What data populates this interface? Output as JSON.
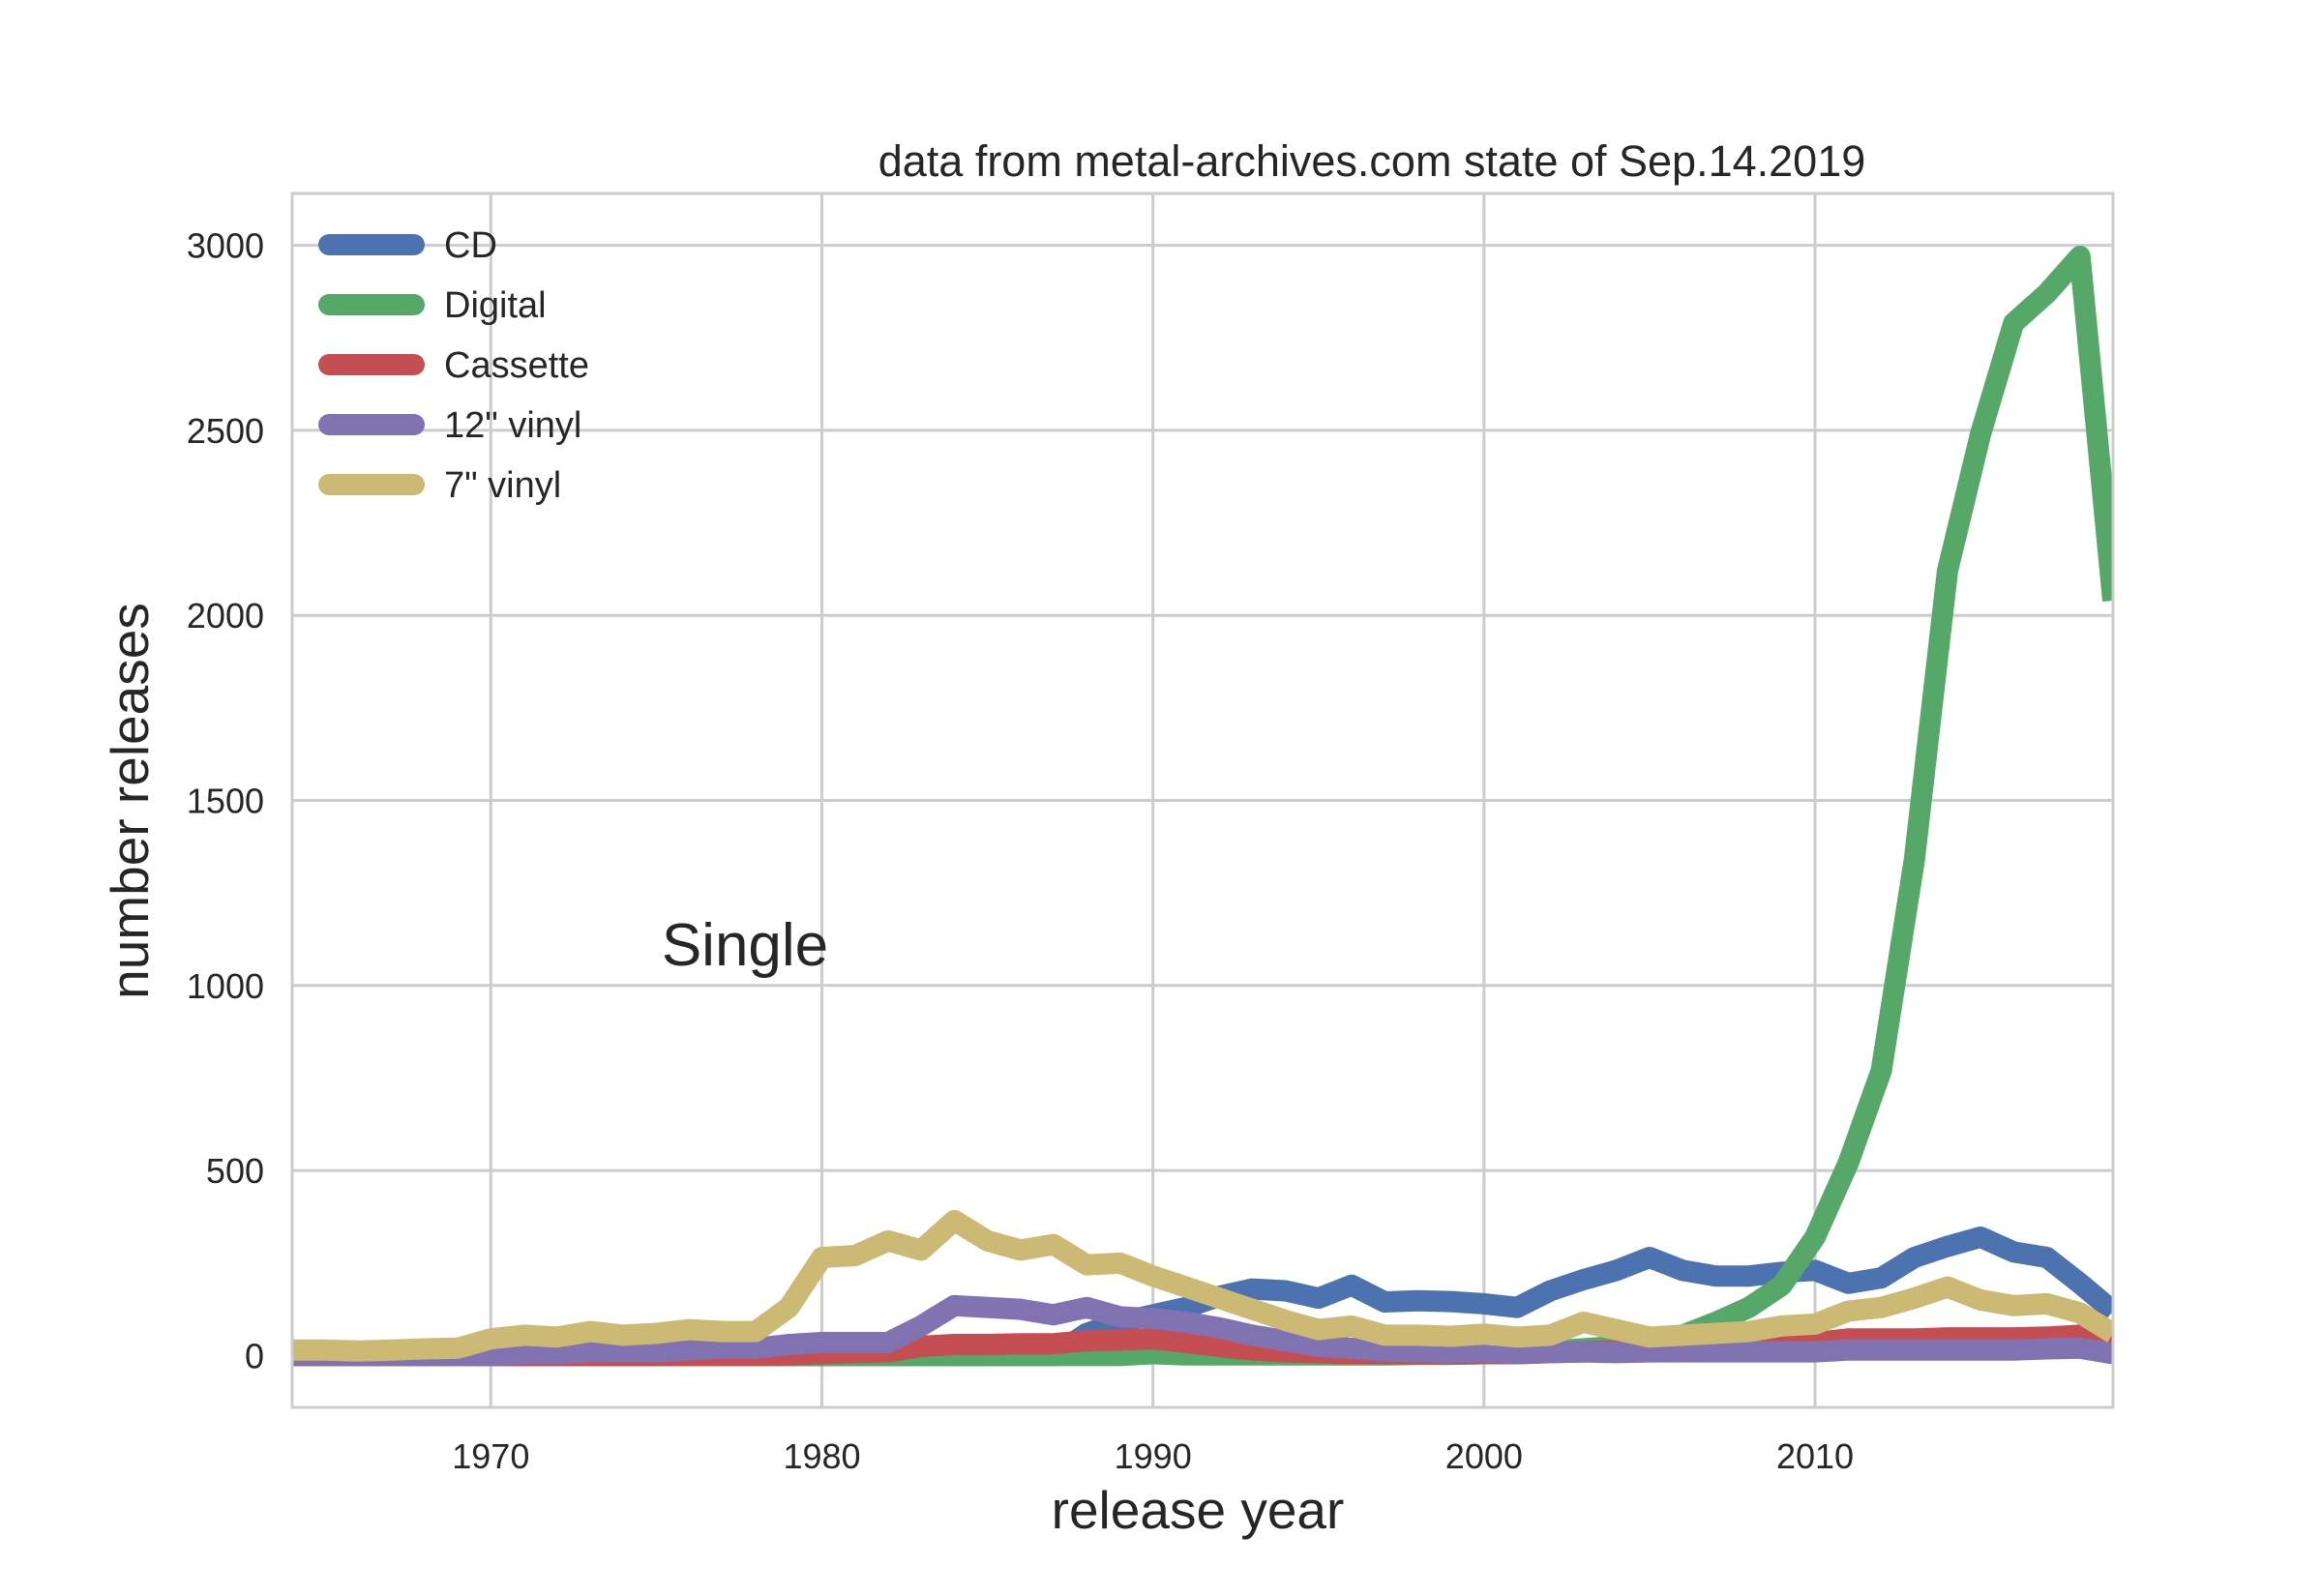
{
  "chart_data": {
    "type": "line",
    "title": "data from metal-archives.com state of Sep.14.2019",
    "annotation": "Single",
    "xlabel": "release year",
    "ylabel": "number releases",
    "xlim": [
      1964,
      2019
    ],
    "ylim": [
      -140,
      3140
    ],
    "xticks": [
      1970,
      1980,
      1990,
      2000,
      2010
    ],
    "yticks": [
      0,
      500,
      1000,
      1500,
      2000,
      2500,
      3000
    ],
    "grid": true,
    "legend_position": "top-left",
    "x": [
      1964,
      1965,
      1966,
      1967,
      1968,
      1969,
      1970,
      1971,
      1972,
      1973,
      1974,
      1975,
      1976,
      1977,
      1978,
      1979,
      1980,
      1981,
      1982,
      1983,
      1984,
      1985,
      1986,
      1987,
      1988,
      1989,
      1990,
      1991,
      1992,
      1993,
      1994,
      1995,
      1996,
      1997,
      1998,
      1999,
      2000,
      2001,
      2002,
      2003,
      2004,
      2005,
      2006,
      2007,
      2008,
      2009,
      2010,
      2011,
      2012,
      2013,
      2014,
      2015,
      2016,
      2017,
      2018,
      2019
    ],
    "series": [
      {
        "name": "CD",
        "color": "#4c72b0",
        "values": [
          0,
          0,
          0,
          0,
          0,
          0,
          0,
          0,
          0,
          0,
          0,
          0,
          0,
          0,
          0,
          0,
          0,
          0,
          0,
          0,
          0,
          0,
          0,
          0,
          60,
          90,
          110,
          130,
          160,
          180,
          175,
          155,
          190,
          145,
          148,
          146,
          140,
          130,
          175,
          205,
          230,
          265,
          230,
          215,
          215,
          225,
          230,
          195,
          210,
          265,
          295,
          320,
          280,
          265,
          195,
          120
        ]
      },
      {
        "name": "Digital",
        "color": "#55a868",
        "values": [
          0,
          0,
          0,
          0,
          0,
          0,
          0,
          0,
          0,
          0,
          0,
          0,
          0,
          0,
          0,
          0,
          0,
          0,
          0,
          0,
          0,
          0,
          0,
          0,
          0,
          0,
          5,
          2,
          2,
          2,
          2,
          2,
          2,
          2,
          3,
          3,
          5,
          8,
          12,
          18,
          25,
          35,
          55,
          90,
          130,
          190,
          320,
          520,
          770,
          1340,
          2120,
          2490,
          2790,
          2870,
          2970,
          2040
        ]
      },
      {
        "name": "Cassette",
        "color": "#c44e52",
        "values": [
          0,
          0,
          0,
          0,
          0,
          0,
          0,
          0,
          0,
          0,
          0,
          0,
          0,
          0,
          0,
          2,
          5,
          8,
          10,
          25,
          30,
          30,
          32,
          32,
          40,
          42,
          45,
          35,
          25,
          15,
          10,
          8,
          5,
          5,
          5,
          5,
          5,
          5,
          8,
          10,
          12,
          15,
          18,
          20,
          25,
          30,
          35,
          45,
          45,
          45,
          48,
          48,
          48,
          50,
          55,
          50
        ]
      },
      {
        "name": "12\" vinyl",
        "color": "#8172b2",
        "values": [
          0,
          0,
          0,
          0,
          0,
          0,
          0,
          5,
          5,
          10,
          10,
          10,
          15,
          20,
          20,
          30,
          35,
          35,
          35,
          80,
          135,
          130,
          125,
          110,
          130,
          105,
          100,
          90,
          75,
          55,
          40,
          25,
          20,
          12,
          10,
          8,
          10,
          5,
          8,
          10,
          8,
          10,
          10,
          10,
          10,
          10,
          10,
          15,
          15,
          15,
          15,
          15,
          15,
          18,
          20,
          5
        ]
      },
      {
        "name": "7\" vinyl",
        "color": "#ccb974",
        "values": [
          15,
          15,
          12,
          15,
          18,
          20,
          45,
          55,
          50,
          65,
          55,
          60,
          70,
          65,
          65,
          130,
          265,
          270,
          310,
          285,
          365,
          310,
          285,
          300,
          245,
          250,
          215,
          185,
          155,
          125,
          95,
          70,
          80,
          55,
          55,
          52,
          58,
          50,
          55,
          90,
          70,
          50,
          55,
          60,
          65,
          80,
          85,
          120,
          130,
          155,
          185,
          150,
          135,
          140,
          115,
          60
        ]
      }
    ]
  }
}
